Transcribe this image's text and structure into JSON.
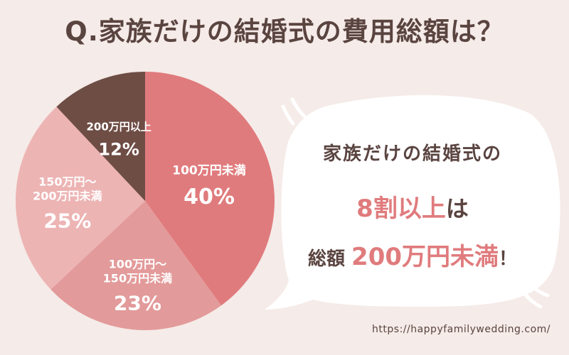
{
  "title": "Q.家族だけの結婚式の費用総額は？",
  "chart_data": {
    "type": "pie",
    "title": "Q.家族だけの結婚式の費用総額は？",
    "slices": [
      {
        "label": "100万円未満",
        "value": 40,
        "display": "40%",
        "color": "#e07b7d"
      },
      {
        "label": "100万円〜\n150万円未満",
        "value": 23,
        "display": "23%",
        "color": "#e39a9a"
      },
      {
        "label": "150万円〜\n200万円未満",
        "value": 25,
        "display": "25%",
        "color": "#edb4b4"
      },
      {
        "label": "200万円以上",
        "value": 12,
        "display": "12%",
        "color": "#6e4d45"
      }
    ],
    "colors": {
      "background": "#f5ebe8",
      "text_dark": "#5a4440",
      "accent": "#e07b7d"
    }
  },
  "callout": {
    "line1": "家族だけの結婚式の",
    "line2_highlight": "8割以上",
    "line2_suffix": "は",
    "line3_prefix": "総額",
    "line3_highlight": "200万円未満",
    "line3_suffix": "！"
  },
  "url": "https://happyfamilywedding.com/"
}
